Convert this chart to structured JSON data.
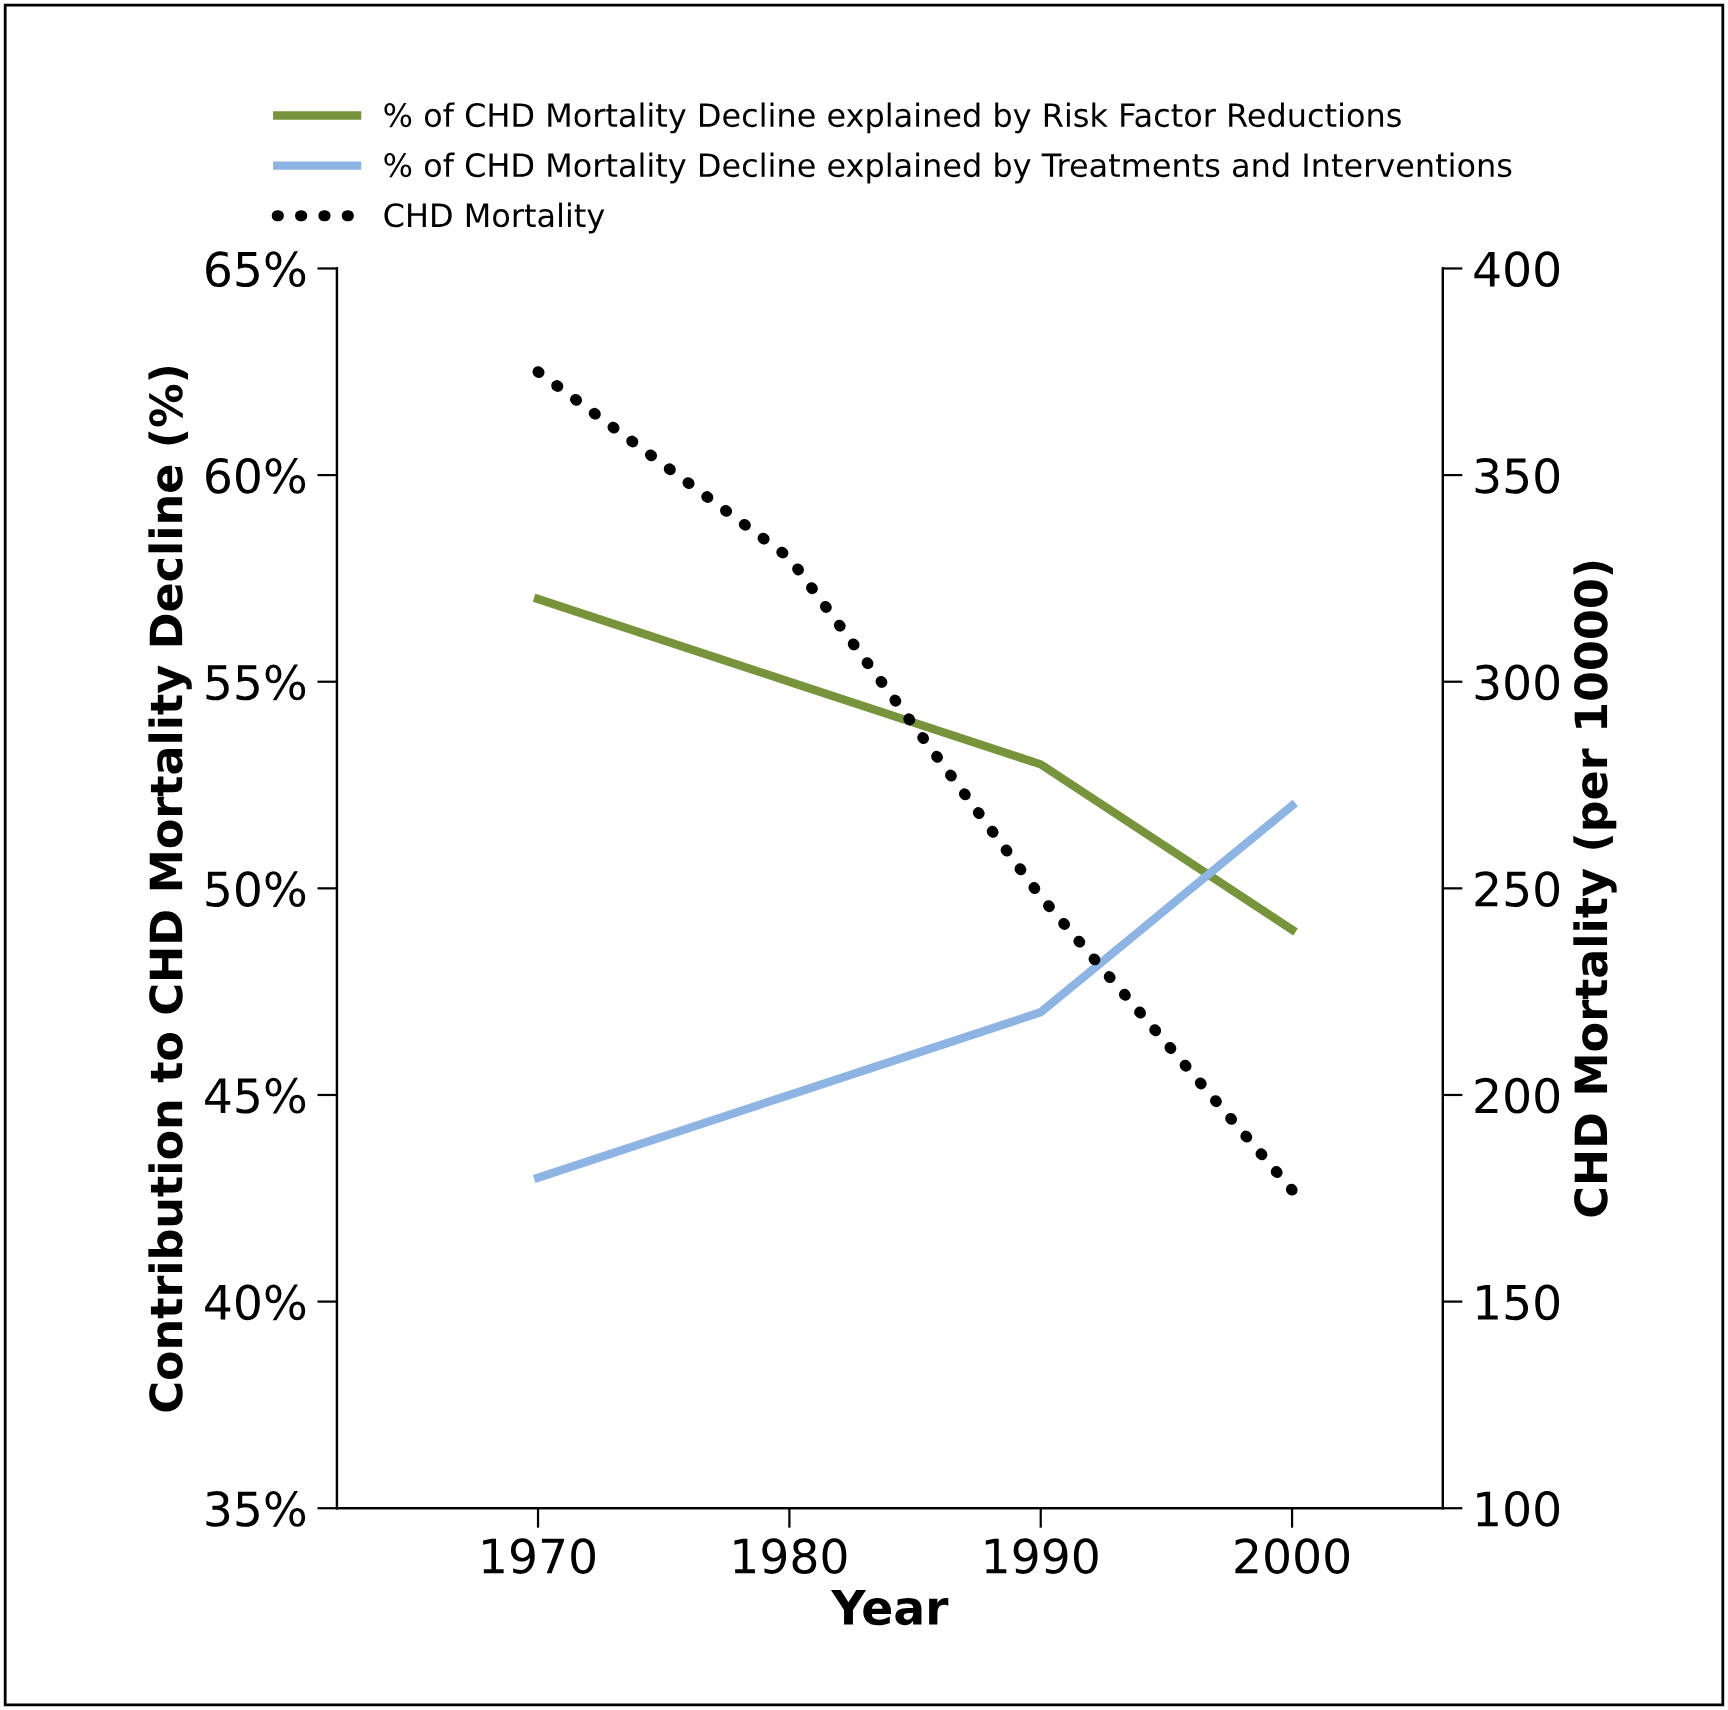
{
  "chart_data": {
    "type": "line",
    "xlabel": "Year",
    "ylabel": "Contribution to CHD Mortality Decline (%)",
    "y2label": "CHD Mortality (per 10000)",
    "x": [
      1970,
      1980,
      1990,
      2000
    ],
    "xlim": [
      1962,
      2006
    ],
    "xticks": [
      1970,
      1980,
      1990,
      2000
    ],
    "ylim": [
      35,
      65
    ],
    "yticks": [
      {
        "value": 35,
        "label": "35%"
      },
      {
        "value": 40,
        "label": "40%"
      },
      {
        "value": 45,
        "label": "45%"
      },
      {
        "value": 50,
        "label": "50%"
      },
      {
        "value": 55,
        "label": "55%"
      },
      {
        "value": 60,
        "label": "60%"
      },
      {
        "value": 65,
        "label": "65%"
      }
    ],
    "y2lim": [
      100,
      400
    ],
    "y2ticks": [
      100,
      150,
      200,
      250,
      300,
      350,
      400
    ],
    "grid": false,
    "legend": "top",
    "marker": "none",
    "series": [
      {
        "name": "% of CHD Mortality Decline explained by Risk Factor Reductions",
        "color": "#77933c",
        "values": [
          57,
          55,
          53,
          49
        ]
      },
      {
        "name": "% of CHD Mortality Decline explained by Treatments and Interventions",
        "color": "#8eb4e3",
        "values": [
          43,
          45,
          47,
          52
        ]
      },
      {
        "name": "CHD Mortality",
        "color": "#000000",
        "values": [
          375,
          330,
          248,
          177
        ],
        "axis": "y2",
        "line_style": "dotted"
      }
    ]
  }
}
